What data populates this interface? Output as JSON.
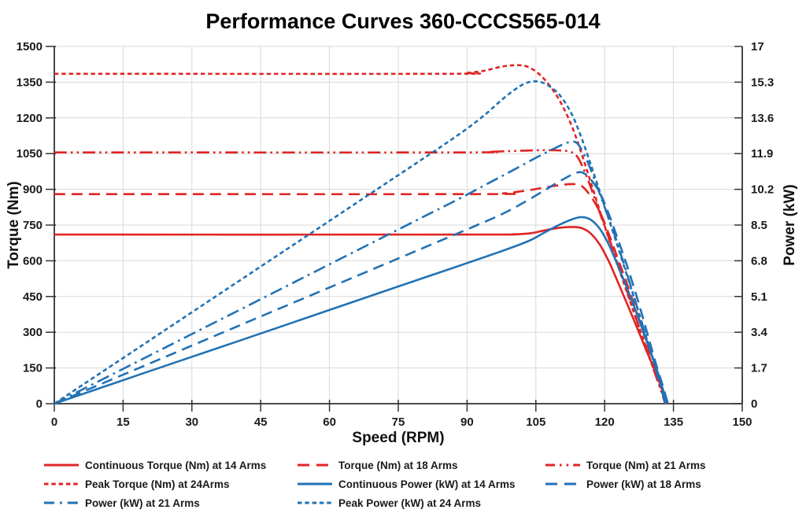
{
  "chart_data": {
    "type": "line",
    "title": "Performance Curves 360-CCCS565-014",
    "xlabel": "Speed (RPM)",
    "ylabel_left": "Torque (Nm)",
    "ylabel_right": "Power (kW)",
    "xlim": [
      0,
      150
    ],
    "ylim_left": [
      0,
      1500
    ],
    "ylim_right": [
      0,
      17
    ],
    "x_ticks": [
      0,
      15,
      30,
      45,
      60,
      75,
      90,
      105,
      120,
      135,
      150
    ],
    "y_ticks_left": [
      0,
      150,
      300,
      450,
      600,
      750,
      900,
      1050,
      1200,
      1350,
      1500
    ],
    "y_ticks_right": [
      0,
      1.7,
      3.4,
      5.1,
      6.8,
      8.5,
      10.2,
      11.9,
      13.6,
      15.3,
      17
    ],
    "grid": true,
    "legend_position": "bottom",
    "colors": {
      "torque": "#e02424",
      "power": "#2272b4",
      "grid": "#d9d9d9",
      "axis": "#333333",
      "text": "#1a1a1a"
    },
    "series": [
      {
        "name": "Continuous Torque (Nm) at 14 Arms",
        "axis": "left",
        "color": "torque",
        "dash": "solid",
        "points": [
          [
            0,
            710
          ],
          [
            90,
            710
          ],
          [
            100,
            711
          ],
          [
            104,
            716
          ],
          [
            107,
            728
          ],
          [
            110,
            738
          ],
          [
            113,
            742
          ],
          [
            115,
            737
          ],
          [
            117,
            714
          ],
          [
            119,
            666
          ],
          [
            121,
            594
          ],
          [
            123,
            505
          ],
          [
            125,
            415
          ],
          [
            127,
            322
          ],
          [
            129,
            228
          ],
          [
            131,
            136
          ],
          [
            132.5,
            60
          ],
          [
            133.6,
            0
          ]
        ]
      },
      {
        "name": "Torque (Nm) at 18 Arms",
        "axis": "left",
        "color": "torque",
        "dash": "long-dash",
        "points": [
          [
            0,
            880
          ],
          [
            92,
            880
          ],
          [
            98,
            883
          ],
          [
            103,
            895
          ],
          [
            107,
            908
          ],
          [
            110,
            917
          ],
          [
            113,
            922
          ],
          [
            115,
            914
          ],
          [
            117,
            870
          ],
          [
            119,
            803
          ],
          [
            121,
            708
          ],
          [
            123,
            602
          ],
          [
            125,
            496
          ],
          [
            127,
            383
          ],
          [
            129,
            266
          ],
          [
            131,
            148
          ],
          [
            132.7,
            60
          ],
          [
            133.8,
            0
          ]
        ]
      },
      {
        "name": "Torque (Nm) at 21 Arms",
        "axis": "left",
        "color": "torque",
        "dash": "dash-dot-dot",
        "points": [
          [
            0,
            1055
          ],
          [
            88,
            1055
          ],
          [
            95,
            1058
          ],
          [
            100,
            1061
          ],
          [
            105,
            1064
          ],
          [
            109,
            1064
          ],
          [
            112,
            1060
          ],
          [
            114,
            1038
          ],
          [
            116,
            958
          ],
          [
            118,
            853
          ],
          [
            120,
            744
          ],
          [
            122,
            638
          ],
          [
            124,
            523
          ],
          [
            126,
            408
          ],
          [
            128,
            293
          ],
          [
            130,
            180
          ],
          [
            132,
            70
          ],
          [
            133.2,
            0
          ]
        ]
      },
      {
        "name": "Peak Torque (Nm) at 24Arms",
        "axis": "left",
        "color": "torque",
        "dash": "short-dash",
        "points": [
          [
            0,
            1385
          ],
          [
            85,
            1385
          ],
          [
            90,
            1389
          ],
          [
            94,
            1399
          ],
          [
            97,
            1413
          ],
          [
            100,
            1421
          ],
          [
            103,
            1416
          ],
          [
            106,
            1379
          ],
          [
            109,
            1309
          ],
          [
            111,
            1243
          ],
          [
            113,
            1158
          ],
          [
            115,
            1048
          ],
          [
            117,
            928
          ],
          [
            119,
            806
          ],
          [
            121,
            688
          ],
          [
            123,
            573
          ],
          [
            125,
            460
          ],
          [
            127,
            348
          ],
          [
            129,
            238
          ],
          [
            131,
            128
          ],
          [
            132.6,
            45
          ],
          [
            133.4,
            0
          ]
        ]
      },
      {
        "name": "Continuous Power (kW) at 14 Arms",
        "axis": "right",
        "color": "power",
        "dash": "solid",
        "points": [
          [
            0,
            0
          ],
          [
            20,
            1.49
          ],
          [
            40,
            2.97
          ],
          [
            60,
            4.46
          ],
          [
            80,
            5.95
          ],
          [
            90,
            6.69
          ],
          [
            100,
            7.45
          ],
          [
            104,
            7.8
          ],
          [
            107,
            8.16
          ],
          [
            110,
            8.5
          ],
          [
            113,
            8.78
          ],
          [
            115,
            8.88
          ],
          [
            117,
            8.75
          ],
          [
            119,
            8.3
          ],
          [
            121,
            7.53
          ],
          [
            123,
            6.5
          ],
          [
            125,
            5.43
          ],
          [
            127,
            4.28
          ],
          [
            129,
            3.08
          ],
          [
            131,
            1.87
          ],
          [
            132.5,
            0.83
          ],
          [
            133.6,
            0
          ]
        ]
      },
      {
        "name": "Power (kW) at 18 Arms",
        "axis": "right",
        "color": "power",
        "dash": "long-dash",
        "points": [
          [
            0,
            0
          ],
          [
            20,
            1.84
          ],
          [
            40,
            3.69
          ],
          [
            60,
            5.53
          ],
          [
            80,
            7.37
          ],
          [
            92,
            8.48
          ],
          [
            98,
            9.06
          ],
          [
            103,
            9.65
          ],
          [
            107,
            10.17
          ],
          [
            110,
            10.56
          ],
          [
            113,
            10.91
          ],
          [
            115,
            11.01
          ],
          [
            117,
            10.66
          ],
          [
            119,
            10.01
          ],
          [
            121,
            8.97
          ],
          [
            123,
            7.75
          ],
          [
            125,
            6.49
          ],
          [
            127,
            5.09
          ],
          [
            129,
            3.59
          ],
          [
            131,
            2.03
          ],
          [
            132.7,
            0.83
          ],
          [
            133.8,
            0
          ]
        ]
      },
      {
        "name": "Power (kW) at 21 Arms",
        "axis": "right",
        "color": "power",
        "dash": "dash-dot",
        "points": [
          [
            0,
            0
          ],
          [
            20,
            2.21
          ],
          [
            40,
            4.42
          ],
          [
            60,
            6.63
          ],
          [
            80,
            8.84
          ],
          [
            88,
            9.72
          ],
          [
            95,
            10.53
          ],
          [
            100,
            11.11
          ],
          [
            105,
            11.7
          ],
          [
            109,
            12.14
          ],
          [
            112,
            12.43
          ],
          [
            114,
            12.39
          ],
          [
            116,
            11.64
          ],
          [
            118,
            10.54
          ],
          [
            120,
            9.35
          ],
          [
            122,
            8.15
          ],
          [
            124,
            6.79
          ],
          [
            126,
            5.38
          ],
          [
            128,
            3.93
          ],
          [
            130,
            2.45
          ],
          [
            132,
            0.97
          ],
          [
            133.2,
            0
          ]
        ]
      },
      {
        "name": "Peak Power (kW) at 24 Arms",
        "axis": "right",
        "color": "power",
        "dash": "short-dash",
        "points": [
          [
            0,
            0
          ],
          [
            20,
            2.9
          ],
          [
            40,
            5.8
          ],
          [
            60,
            8.7
          ],
          [
            80,
            11.6
          ],
          [
            85,
            12.33
          ],
          [
            90,
            13.09
          ],
          [
            94,
            13.77
          ],
          [
            97,
            14.35
          ],
          [
            100,
            14.88
          ],
          [
            103,
            15.27
          ],
          [
            106,
            15.31
          ],
          [
            109,
            14.94
          ],
          [
            111,
            14.45
          ],
          [
            113,
            13.7
          ],
          [
            115,
            12.62
          ],
          [
            117,
            11.37
          ],
          [
            119,
            10.04
          ],
          [
            121,
            8.72
          ],
          [
            123,
            7.38
          ],
          [
            125,
            6.02
          ],
          [
            127,
            4.63
          ],
          [
            129,
            3.22
          ],
          [
            131,
            1.76
          ],
          [
            132.6,
            0.62
          ],
          [
            133.4,
            0
          ]
        ]
      }
    ]
  }
}
